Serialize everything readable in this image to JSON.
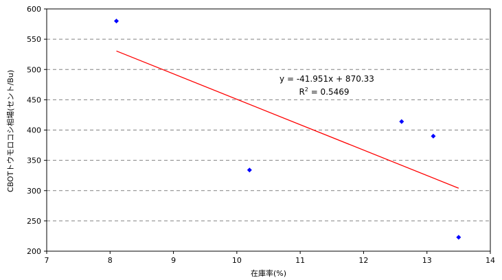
{
  "chart_data": {
    "type": "scatter",
    "xlabel": "在庫率(%)",
    "ylabel": "CBOTトウモロコシ相場(セント/Bu)",
    "xlim": [
      7,
      14
    ],
    "ylim": [
      200,
      600
    ],
    "x_ticks": [
      "7",
      "8",
      "9",
      "10",
      "11",
      "12",
      "13",
      "14"
    ],
    "y_ticks": [
      "200",
      "250",
      "300",
      "350",
      "400",
      "450",
      "500",
      "550",
      "600"
    ],
    "grid": "horizontal dashed",
    "marker_color": "#0000ff",
    "trendline_color": "#ff0000",
    "points": [
      {
        "x": 8.1,
        "y": 580
      },
      {
        "x": 10.2,
        "y": 334
      },
      {
        "x": 12.6,
        "y": 414
      },
      {
        "x": 13.1,
        "y": 390
      },
      {
        "x": 13.5,
        "y": 223
      }
    ],
    "trendline": {
      "slope": -41.951,
      "intercept": 870.33,
      "x_range": [
        8.1,
        13.5
      ],
      "equation_label": "y = -41.951x + 870.33",
      "r2_label_prefix": "R",
      "r2_label_sup": "2",
      "r2_label_value": " = 0.5469"
    }
  }
}
